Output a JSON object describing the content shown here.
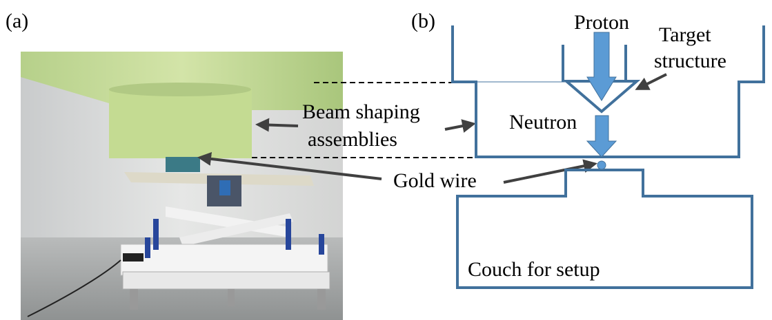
{
  "panel_a": {
    "label": "(a)"
  },
  "panel_b": {
    "label": "(b)"
  },
  "labels": {
    "proton": "Proton",
    "target_structure": [
      "Target",
      "structure"
    ],
    "beam_shaping_assemblies": [
      "Beam shaping",
      "assemblies"
    ],
    "neutron": "Neutron",
    "gold_wire": "Gold wire",
    "couch": "Couch for setup"
  }
}
